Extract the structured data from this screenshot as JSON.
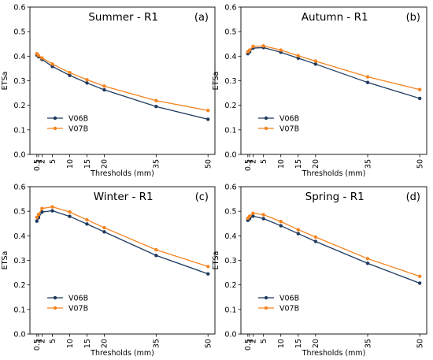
{
  "chart_data": [
    {
      "type": "line",
      "title": "Summer - R1",
      "panel_label": "(a)",
      "xlabel": "Thresholds (mm)",
      "ylabel": "ETSa",
      "x": [
        0.5,
        1,
        2,
        5,
        10,
        15,
        20,
        35,
        50
      ],
      "x_ticks": [
        0.5,
        1,
        2,
        5,
        10,
        15,
        20,
        35,
        50
      ],
      "x_tick_labels": [
        "0.5",
        "1",
        "2",
        "5",
        "10",
        "15",
        "20",
        "35",
        "50"
      ],
      "xlim": [
        -1.5,
        52
      ],
      "ylim": [
        0,
        0.6
      ],
      "y_ticks": [
        0.0,
        0.1,
        0.2,
        0.3,
        0.4,
        0.5,
        0.6
      ],
      "y_tick_labels": [
        "0.0",
        "0.1",
        "0.2",
        "0.3",
        "0.4",
        "0.5",
        "0.6"
      ],
      "grid": false,
      "legend_position": "lower-left",
      "series": [
        {
          "name": "V06B",
          "color": "#1f3a5f",
          "values": [
            0.405,
            0.398,
            0.387,
            0.358,
            0.322,
            0.291,
            0.263,
            0.195,
            0.143
          ]
        },
        {
          "name": "V07B",
          "color": "#f5841f",
          "values": [
            0.41,
            0.403,
            0.393,
            0.368,
            0.333,
            0.304,
            0.278,
            0.219,
            0.179
          ]
        }
      ]
    },
    {
      "type": "line",
      "title": "Autumn - R1",
      "panel_label": "(b)",
      "xlabel": "Thresholds (mm)",
      "ylabel": "ETSa",
      "x": [
        0.5,
        1,
        2,
        5,
        10,
        15,
        20,
        35,
        50
      ],
      "x_ticks": [
        0.5,
        1,
        2,
        5,
        10,
        15,
        20,
        35,
        50
      ],
      "x_tick_labels": [
        "0.5",
        "1",
        "2",
        "5",
        "10",
        "15",
        "20",
        "35",
        "50"
      ],
      "xlim": [
        -1.5,
        52
      ],
      "ylim": [
        0,
        0.6
      ],
      "y_ticks": [
        0.0,
        0.1,
        0.2,
        0.3,
        0.4,
        0.5,
        0.6
      ],
      "y_tick_labels": [
        "0.0",
        "0.1",
        "0.2",
        "0.3",
        "0.4",
        "0.5",
        "0.6"
      ],
      "grid": false,
      "legend_position": "lower-left",
      "series": [
        {
          "name": "V06B",
          "color": "#1f3a5f",
          "values": [
            0.41,
            0.418,
            0.433,
            0.435,
            0.416,
            0.392,
            0.368,
            0.293,
            0.228
          ]
        },
        {
          "name": "V07B",
          "color": "#f5841f",
          "values": [
            0.418,
            0.425,
            0.44,
            0.442,
            0.425,
            0.402,
            0.38,
            0.316,
            0.264
          ]
        }
      ]
    },
    {
      "type": "line",
      "title": "Winter - R1",
      "panel_label": "(c)",
      "xlabel": "Thresholds (mm)",
      "ylabel": "ETSa",
      "x": [
        0.5,
        1,
        2,
        5,
        10,
        15,
        20,
        35,
        50
      ],
      "x_ticks": [
        0.5,
        1,
        2,
        5,
        10,
        15,
        20,
        35,
        50
      ],
      "x_tick_labels": [
        "0.5",
        "1",
        "2",
        "5",
        "10",
        "15",
        "20",
        "35",
        "50"
      ],
      "xlim": [
        -1.5,
        52
      ],
      "ylim": [
        0,
        0.6
      ],
      "y_ticks": [
        0.0,
        0.1,
        0.2,
        0.3,
        0.4,
        0.5,
        0.6
      ],
      "y_tick_labels": [
        "0.0",
        "0.1",
        "0.2",
        "0.3",
        "0.4",
        "0.5",
        "0.6"
      ],
      "grid": false,
      "legend_position": "lower-left",
      "series": [
        {
          "name": "V06B",
          "color": "#1f3a5f",
          "values": [
            0.46,
            0.474,
            0.497,
            0.502,
            0.479,
            0.448,
            0.416,
            0.32,
            0.245
          ]
        },
        {
          "name": "V07B",
          "color": "#f5841f",
          "values": [
            0.475,
            0.487,
            0.511,
            0.518,
            0.497,
            0.465,
            0.433,
            0.343,
            0.275
          ]
        }
      ]
    },
    {
      "type": "line",
      "title": "Spring - R1",
      "panel_label": "(d)",
      "xlabel": "Thresholds (mm)",
      "ylabel": "ETSa",
      "x": [
        0.5,
        1,
        2,
        5,
        10,
        15,
        20,
        35,
        50
      ],
      "x_ticks": [
        0.5,
        1,
        2,
        5,
        10,
        15,
        20,
        35,
        50
      ],
      "x_tick_labels": [
        "0.5",
        "1",
        "2",
        "5",
        "10",
        "15",
        "20",
        "35",
        "50"
      ],
      "xlim": [
        -1.5,
        52
      ],
      "ylim": [
        0,
        0.6
      ],
      "y_ticks": [
        0.0,
        0.1,
        0.2,
        0.3,
        0.4,
        0.5,
        0.6
      ],
      "y_tick_labels": [
        "0.0",
        "0.1",
        "0.2",
        "0.3",
        "0.4",
        "0.5",
        "0.6"
      ],
      "grid": false,
      "legend_position": "lower-left",
      "series": [
        {
          "name": "V06B",
          "color": "#1f3a5f",
          "values": [
            0.463,
            0.47,
            0.48,
            0.47,
            0.441,
            0.409,
            0.377,
            0.288,
            0.207
          ]
        },
        {
          "name": "V07B",
          "color": "#f5841f",
          "values": [
            0.472,
            0.48,
            0.492,
            0.486,
            0.458,
            0.425,
            0.395,
            0.307,
            0.235
          ]
        }
      ]
    }
  ]
}
